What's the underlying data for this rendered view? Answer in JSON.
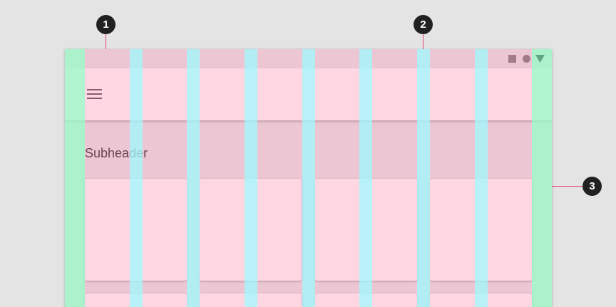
{
  "subheader": "Subheader",
  "callouts": [
    "1",
    "2",
    "3"
  ],
  "status_icons": [
    "square-icon",
    "circle-icon",
    "triangle-icon"
  ],
  "colors": {
    "background": "#e4e4e4",
    "column": "#ecc6d2",
    "gutter": "#9fe6ee",
    "margin": "#9fe7c2",
    "card": "#fed7e3",
    "callout_line": "#e5467d"
  }
}
